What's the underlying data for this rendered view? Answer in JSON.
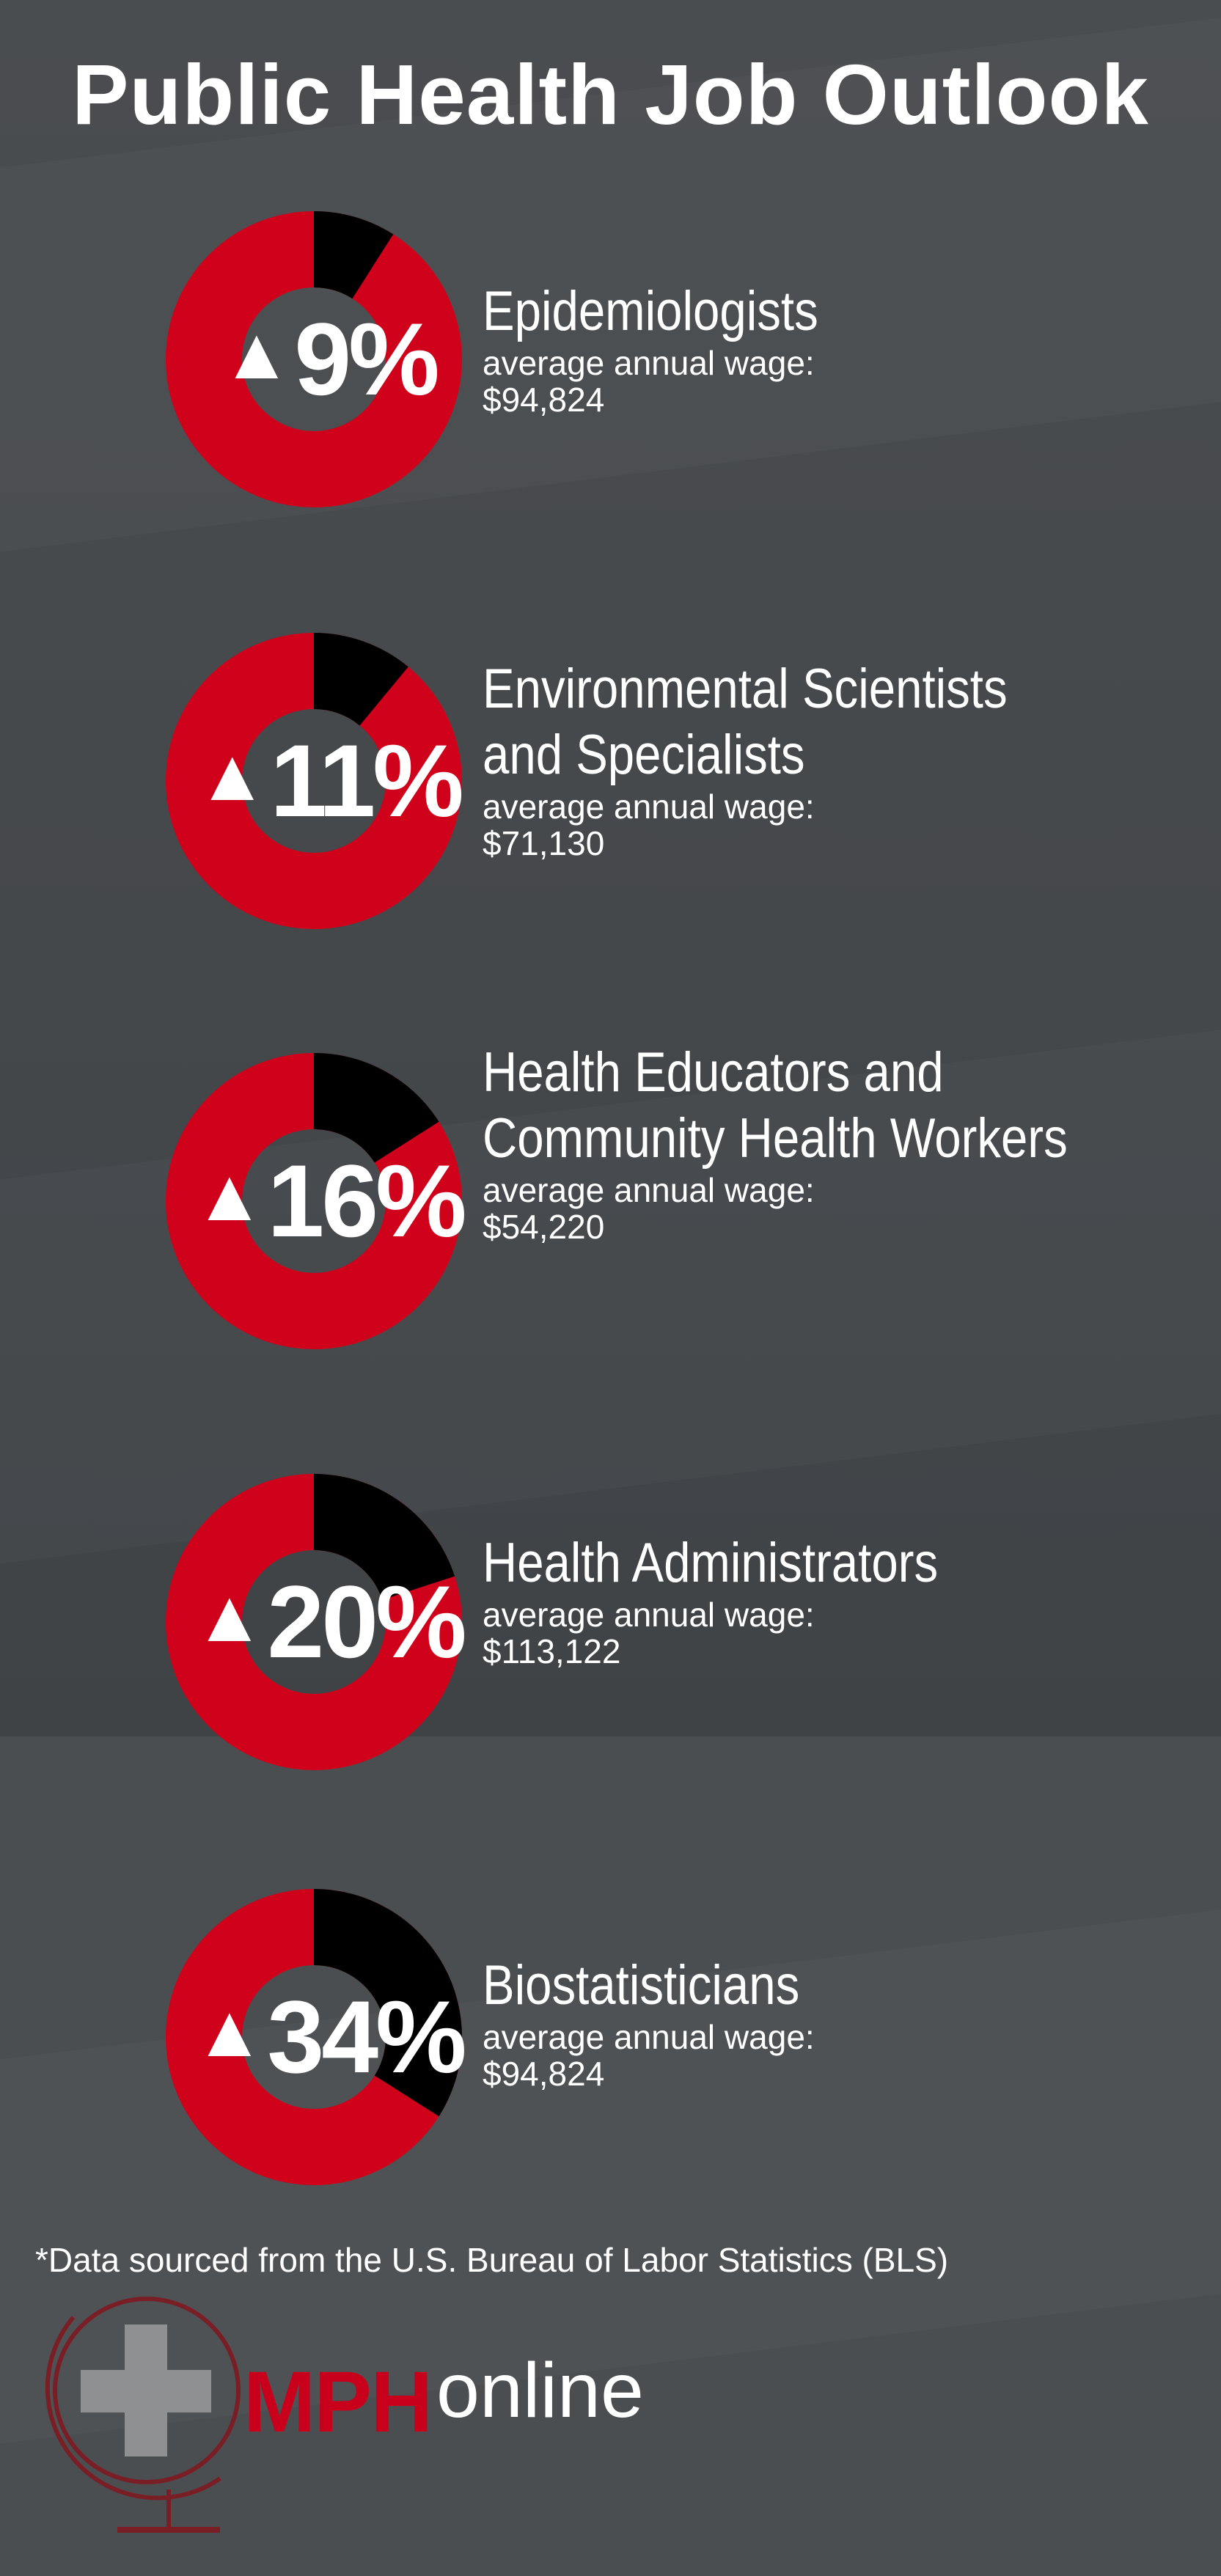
{
  "title": "Public Health Job Outlook",
  "colors": {
    "accent": "#d0021b",
    "ring_rest": "#000000",
    "background": "#4a4d50",
    "text": "#ffffff"
  },
  "chart_data": {
    "type": "pie",
    "variant": "donut",
    "value_unit": "%",
    "items": [
      {
        "job": "Epidemiologists",
        "growth_label": "9%",
        "growth": 9,
        "wage_label": "average annual wage:",
        "wage": "$94,824"
      },
      {
        "job": "Environmental Scientists and Specialists",
        "job_lines": [
          "Environmental Scientists",
          "and Specialists"
        ],
        "growth_label": "11%",
        "growth": 11,
        "wage_label": "average annual wage:",
        "wage": "$71,130"
      },
      {
        "job": "Health Educators and Community Health Workers",
        "job_lines": [
          "Health Educators and",
          "Community Health Workers"
        ],
        "growth_label": "16%",
        "growth": 16,
        "wage_label": "average annual wage:",
        "wage": "$54,220"
      },
      {
        "job": "Health Administrators",
        "growth_label": "20%",
        "growth": 20,
        "wage_label": "average annual wage:",
        "wage": "$113,122"
      },
      {
        "job": "Biostatisticians",
        "growth_label": "34%",
        "growth": 34,
        "wage_label": "average annual wage:",
        "wage": "$94,824"
      }
    ]
  },
  "increase_icon": "triangle-up-icon",
  "footnote": "*Data sourced from the U.S. Bureau of Labor Statistics (BLS)",
  "logo": {
    "icon": "globe-cross-icon",
    "mph": "MPH",
    "online": "online"
  }
}
